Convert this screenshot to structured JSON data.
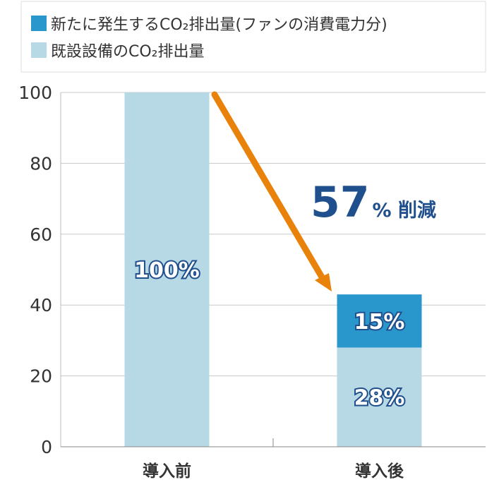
{
  "chart_data": {
    "type": "bar",
    "stacked": true,
    "categories": [
      "導入前",
      "導入後"
    ],
    "series": [
      {
        "name": "既設設備のCO₂排出量",
        "values": [
          100,
          28
        ],
        "labels": [
          "100%",
          "28%"
        ],
        "color": "#b7d9e5"
      },
      {
        "name": "新たに発生するCO₂排出量(ファンの消費電力分)",
        "values": [
          0,
          15
        ],
        "labels": [
          "",
          "15%"
        ],
        "color": "#2a97cc"
      }
    ],
    "ylim": [
      0,
      100
    ],
    "yticks": [
      0,
      20,
      40,
      60,
      80,
      100
    ],
    "grid": true,
    "legend_position": "top-left",
    "annotation": {
      "number": "57",
      "suffix": "% 削減",
      "from": "導入前",
      "to": "導入後",
      "arrow_color": "#e8820a",
      "text_color": "#1f4f8c"
    }
  }
}
